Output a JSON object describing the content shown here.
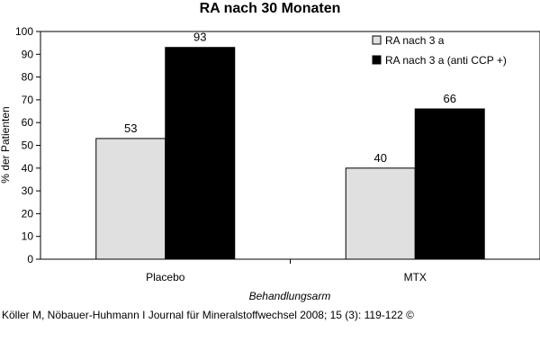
{
  "chart_data": {
    "type": "bar",
    "title": "RA nach 30 Monaten",
    "xlabel": "Behandlungsarm",
    "ylabel": "% der Patienten",
    "categories": [
      "Placebo",
      "MTX"
    ],
    "series": [
      {
        "name": "RA nach 3 a",
        "values": [
          53,
          40
        ],
        "color": "#e0e0e0"
      },
      {
        "name": "RA nach 3 a (anti CCP +)",
        "values": [
          93,
          66
        ],
        "color": "#000000"
      }
    ],
    "ylim": [
      0,
      100
    ],
    "yticks": [
      0,
      10,
      20,
      30,
      40,
      50,
      60,
      70,
      80,
      90,
      100
    ],
    "grid": false,
    "legend_position": "top-right",
    "data_labels": true
  },
  "footer": {
    "citation": "Köller M, Nöbauer-Huhmann I Journal für Mineralstoffwechsel 2008; 15 (3): 119-122 ©"
  }
}
